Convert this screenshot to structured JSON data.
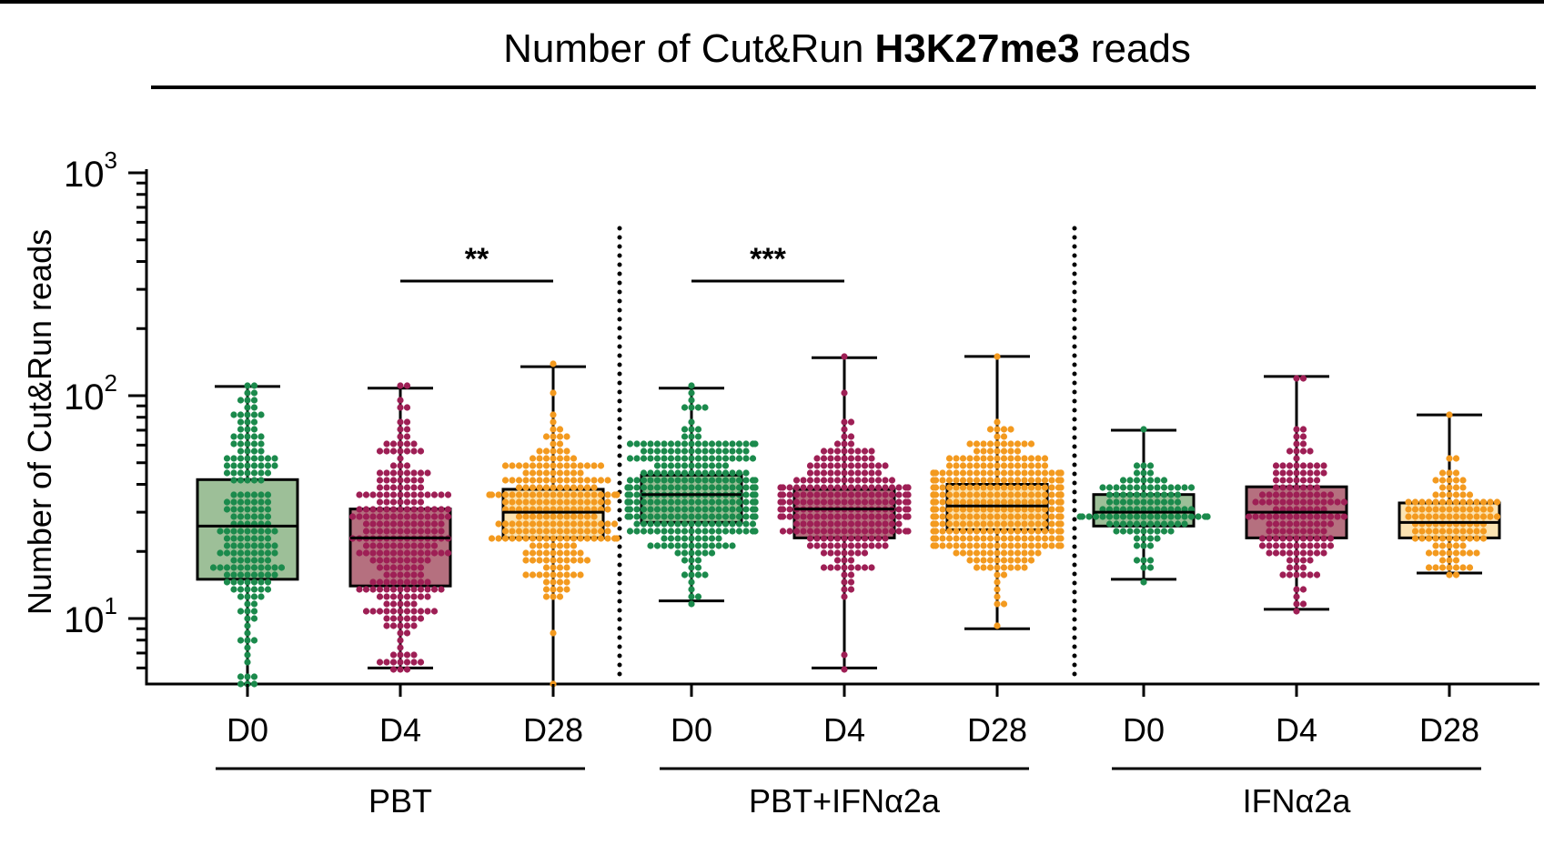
{
  "chart_data": {
    "type": "box",
    "title": {
      "prefix": "Number of Cut&Run ",
      "bold": "H3K27me3",
      "suffix": " reads"
    },
    "ylabel": "Number of Cut&Run reads",
    "yscale": "log",
    "ylim": [
      5,
      1000
    ],
    "yticks": [
      {
        "value": 10,
        "base": "10",
        "exp": "1"
      },
      {
        "value": 100,
        "base": "10",
        "exp": "2"
      },
      {
        "value": 1000,
        "base": "10",
        "exp": "3"
      }
    ],
    "colors": {
      "D0": {
        "point": "#1b8a4c",
        "fill": "#9dbf98"
      },
      "D4": {
        "point": "#9e1f55",
        "fill": "#b5707f"
      },
      "D28": {
        "point": "#f39a1f",
        "fill": "#fbe3b2"
      }
    },
    "groups": [
      {
        "name": "PBT",
        "boxes": [
          {
            "label": "D0",
            "min": 5,
            "q1": 15,
            "median": 26,
            "q3": 42,
            "max": 110,
            "n": 190
          },
          {
            "label": "D4",
            "min": 6,
            "q1": 14,
            "median": 23,
            "q3": 31,
            "max": 108,
            "n": 260
          },
          {
            "label": "D28",
            "min": 5,
            "q1": 23,
            "median": 30,
            "q3": 38,
            "max": 135,
            "n": 250
          }
        ]
      },
      {
        "name": "PBT+IFNα2a",
        "boxes": [
          {
            "label": "D0",
            "min": 12,
            "q1": 27,
            "median": 36,
            "q3": 44,
            "max": 108,
            "n": 320
          },
          {
            "label": "D4",
            "min": 6,
            "q1": 23,
            "median": 31,
            "q3": 38,
            "max": 148,
            "n": 260
          },
          {
            "label": "D28",
            "min": 9,
            "q1": 25,
            "median": 32,
            "q3": 40,
            "max": 150,
            "n": 380
          }
        ]
      },
      {
        "name": "IFNα2a",
        "boxes": [
          {
            "label": "D0",
            "min": 15,
            "q1": 26,
            "median": 30,
            "q3": 36,
            "max": 70,
            "n": 120
          },
          {
            "label": "D4",
            "min": 11,
            "q1": 23,
            "median": 30,
            "q3": 39,
            "max": 122,
            "n": 160
          },
          {
            "label": "D28",
            "min": 16,
            "q1": 23,
            "median": 27,
            "q3": 33,
            "max": 82,
            "n": 120
          }
        ]
      }
    ],
    "significance": [
      {
        "group": 0,
        "from": 1,
        "to": 2,
        "label": "**"
      },
      {
        "group": 1,
        "from": 0,
        "to": 1,
        "label": "***"
      }
    ]
  }
}
